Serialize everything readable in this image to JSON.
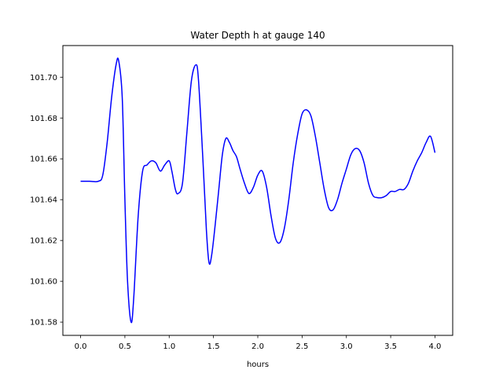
{
  "chart_data": {
    "type": "line",
    "title": "Water Depth h at gauge 140",
    "xlabel": "hours",
    "ylabel": "",
    "xlim": [
      -0.2,
      4.2
    ],
    "ylim": [
      101.5735,
      101.7155
    ],
    "xticks": [
      0.0,
      0.5,
      1.0,
      1.5,
      2.0,
      2.5,
      3.0,
      3.5,
      4.0
    ],
    "xtick_labels": [
      "0.0",
      "0.5",
      "1.0",
      "1.5",
      "2.0",
      "2.5",
      "3.0",
      "3.5",
      "4.0"
    ],
    "yticks": [
      101.58,
      101.6,
      101.62,
      101.64,
      101.66,
      101.68,
      101.7
    ],
    "ytick_labels": [
      "101.58",
      "101.60",
      "101.62",
      "101.64",
      "101.66",
      "101.68",
      "101.70"
    ],
    "grid": false,
    "series": [
      {
        "color": "#0000ff",
        "x": [
          0.0,
          0.1,
          0.2,
          0.25,
          0.3,
          0.35,
          0.4,
          0.43,
          0.47,
          0.5,
          0.53,
          0.57,
          0.6,
          0.65,
          0.7,
          0.75,
          0.8,
          0.85,
          0.9,
          0.95,
          1.0,
          1.03,
          1.07,
          1.1,
          1.15,
          1.2,
          1.25,
          1.3,
          1.33,
          1.38,
          1.42,
          1.45,
          1.48,
          1.52,
          1.56,
          1.6,
          1.64,
          1.68,
          1.72,
          1.76,
          1.8,
          1.85,
          1.9,
          1.95,
          2.0,
          2.05,
          2.1,
          2.15,
          2.2,
          2.25,
          2.3,
          2.35,
          2.4,
          2.45,
          2.5,
          2.55,
          2.6,
          2.65,
          2.7,
          2.75,
          2.8,
          2.85,
          2.9,
          2.95,
          3.0,
          3.05,
          3.1,
          3.15,
          3.2,
          3.25,
          3.3,
          3.35,
          3.4,
          3.45,
          3.5,
          3.55,
          3.6,
          3.65,
          3.7,
          3.75,
          3.8,
          3.85,
          3.9,
          3.95,
          4.0
        ],
        "y": [
          101.649,
          101.649,
          101.649,
          101.652,
          101.668,
          101.69,
          101.706,
          101.708,
          101.69,
          101.64,
          101.6,
          101.58,
          101.592,
          101.632,
          101.654,
          101.657,
          101.659,
          101.658,
          101.654,
          101.657,
          101.659,
          101.654,
          101.645,
          101.643,
          101.648,
          101.673,
          101.698,
          101.706,
          101.699,
          101.66,
          101.625,
          101.609,
          101.613,
          101.628,
          101.645,
          101.662,
          101.67,
          101.668,
          101.664,
          101.661,
          101.655,
          101.648,
          101.643,
          101.646,
          101.652,
          101.654,
          101.646,
          101.632,
          101.621,
          101.619,
          101.626,
          101.64,
          101.658,
          101.672,
          101.682,
          101.684,
          101.681,
          101.671,
          101.658,
          101.645,
          101.636,
          101.635,
          101.64,
          101.648,
          101.655,
          101.662,
          101.665,
          101.664,
          101.658,
          101.648,
          101.642,
          101.641,
          101.641,
          101.642,
          101.644,
          101.644,
          101.645,
          101.645,
          101.648,
          101.654,
          101.659,
          101.663,
          101.668,
          101.671,
          101.663
        ]
      }
    ]
  }
}
